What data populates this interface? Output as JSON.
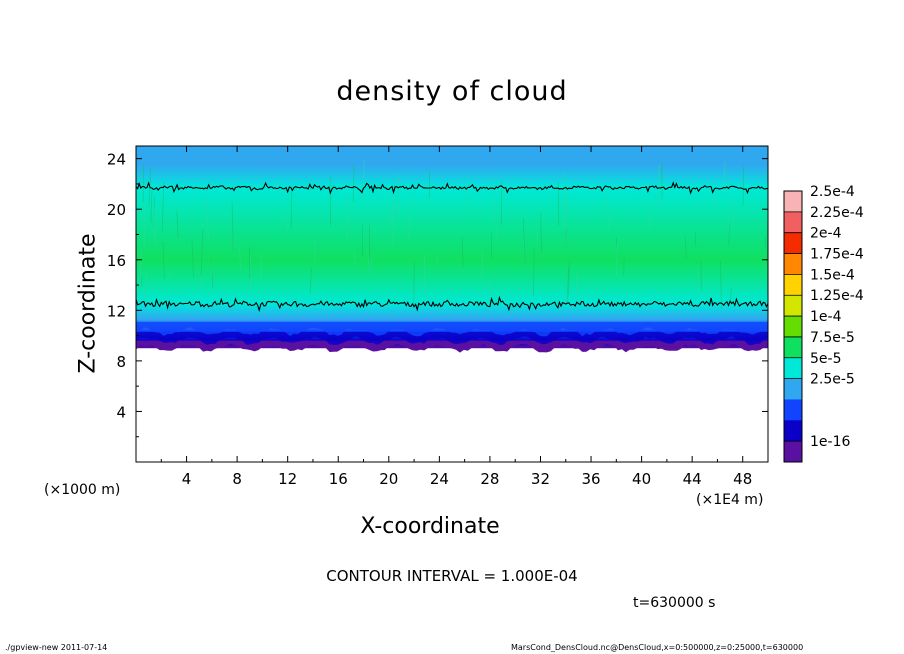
{
  "figure": {
    "contour_interval": "CONTOUR INTERVAL = 1.000E-04",
    "time_label": "t=630000 s",
    "x_unit_label": "(×1000 m)",
    "x_scale_label": "(×1E4 m)",
    "footer_left": "./gpview-new   2011-07-14",
    "footer_right": "MarsCond_DensCloud.nc@DensCloud,x=0:500000,z=0:25000,t=630000"
  },
  "chart_data": {
    "type": "heatmap",
    "title": "density of cloud",
    "xlabel": "X-coordinate",
    "ylabel": "Z-coordinate",
    "xlim": [
      0,
      50
    ],
    "ylim": [
      0,
      25
    ],
    "x_ticks": [
      4,
      8,
      12,
      16,
      20,
      24,
      28,
      32,
      36,
      40,
      44,
      48
    ],
    "y_ticks": [
      4,
      8,
      12,
      16,
      20,
      24
    ],
    "colorbar": {
      "labels": [
        "2.5e-4",
        "2.25e-4",
        "2e-4",
        "1.75e-4",
        "1.5e-4",
        "1.25e-4",
        "1e-4",
        "7.5e-5",
        "5e-5",
        "2.5e-5",
        "1e-16"
      ],
      "colors": [
        "#f8b4b4",
        "#f06060",
        "#f42c00",
        "#ff8800",
        "#ffd200",
        "#d2e600",
        "#66dd00",
        "#10e060",
        "#00e8d8",
        "#30a8f0",
        "#1044ff",
        "#0a00c8",
        "#5a10a0"
      ]
    },
    "cloud_layer": {
      "cloud_base_z": 9,
      "cloud_top_z": 25,
      "contour_lines_z": [
        12.5,
        21.7
      ],
      "profile": [
        {
          "z": 9.0,
          "level": "1e-16"
        },
        {
          "z": 9.6,
          "level": "2.5e-5"
        },
        {
          "z": 10.3,
          "level": "5e-5"
        },
        {
          "z": 11.3,
          "level": "7.5e-5"
        },
        {
          "z": 12.5,
          "level": "1e-4"
        },
        {
          "z": 16.0,
          "level": "1.25e-4"
        },
        {
          "z": 21.7,
          "level": "1e-4"
        },
        {
          "z": 23.5,
          "level": "7.5e-5"
        }
      ]
    }
  }
}
